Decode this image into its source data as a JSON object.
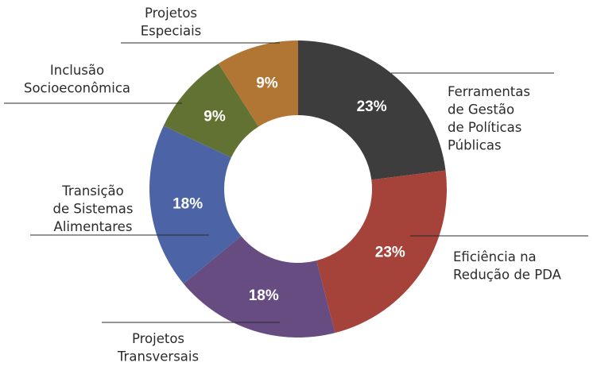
{
  "chart_data": {
    "type": "pie",
    "donut": true,
    "legend": "none",
    "slices": [
      {
        "label_lines": [
          "Ferramentas",
          "de Gestão",
          "de Políticas",
          "Públicas"
        ],
        "value": 23,
        "value_label": "23%",
        "color": "#3d3d3d"
      },
      {
        "label_lines": [
          "Eficiência na",
          "Redução de PDA"
        ],
        "value": 23,
        "value_label": "23%",
        "color": "#a5423a"
      },
      {
        "label_lines": [
          "Projetos",
          "Transversais"
        ],
        "value": 18,
        "value_label": "18%",
        "color": "#674c81"
      },
      {
        "label_lines": [
          "Transição",
          "de Sistemas",
          "Alimentares"
        ],
        "value": 18,
        "value_label": "18%",
        "color": "#4c64a5"
      },
      {
        "label_lines": [
          "Inclusão",
          "Socioeconômica"
        ],
        "value": 9,
        "value_label": "9%",
        "color": "#627232"
      },
      {
        "label_lines": [
          "Projetos",
          "Especiais"
        ],
        "value": 9,
        "value_label": "9%",
        "color": "#b27634"
      }
    ]
  }
}
